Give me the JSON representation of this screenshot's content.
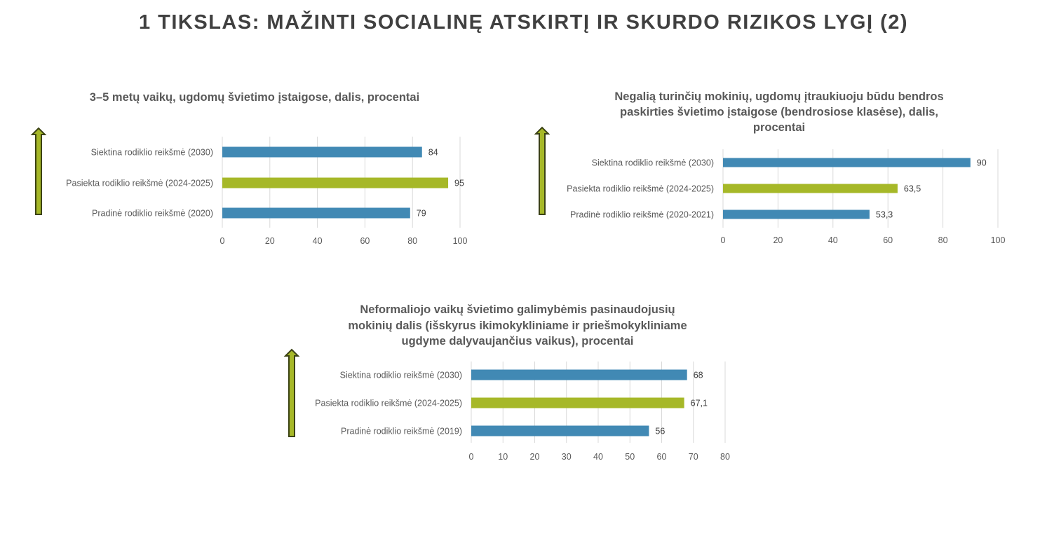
{
  "page_title": "1 TIKSLAS: MAŽINTI SOCIALINĘ ATSKIRTĮ IR SKURDO RIZIKOS LYGĮ (2)",
  "colors": {
    "blue": "#4189b4",
    "green": "#a6b828",
    "arrow_fill": "#a6b828",
    "arrow_stroke": "#3b4214",
    "grid": "#d9d9d9"
  },
  "chart_data": [
    {
      "type": "bar",
      "orientation": "horizontal",
      "title_lines": [
        "3–5 metų vaikų, ugdomų švietimo įstaigose, dalis, procentai"
      ],
      "categories": [
        "Siektina rodiklio reikšmė (2030)",
        "Pasiekta rodiklio reikšmė (2024-2025)",
        "Pradinė rodiklio reikšmė (2020)"
      ],
      "values": [
        84,
        95,
        79
      ],
      "value_labels": [
        "84",
        "95",
        "79"
      ],
      "bar_colors": [
        "blue",
        "green",
        "blue"
      ],
      "xlim": [
        0,
        100
      ],
      "xticks": [
        "0",
        "20",
        "40",
        "60",
        "80",
        "100"
      ],
      "grid": true,
      "direction_arrow": "up"
    },
    {
      "type": "bar",
      "orientation": "horizontal",
      "title_lines": [
        "Negalią turinčių mokinių, ugdomų įtraukiuoju būdu bendros",
        "paskirties švietimo įstaigose (bendrosiose klasėse), dalis,",
        "procentai"
      ],
      "categories": [
        "Siektina rodiklio reikšmė (2030)",
        "Pasiekta rodiklio reikšmė (2024-2025)",
        "Pradinė rodiklio reikšmė (2020-2021)"
      ],
      "values": [
        90,
        63.5,
        53.3
      ],
      "value_labels": [
        "90",
        "63,5",
        "53,3"
      ],
      "bar_colors": [
        "blue",
        "green",
        "blue"
      ],
      "xlim": [
        0,
        100
      ],
      "xticks": [
        "0",
        "20",
        "40",
        "60",
        "80",
        "100"
      ],
      "grid": true,
      "direction_arrow": "up"
    },
    {
      "type": "bar",
      "orientation": "horizontal",
      "title_lines": [
        "Neformaliojo vaikų švietimo galimybėmis pasinaudojusių",
        "mokinių dalis (išskyrus ikimokykliniame ir priešmokykliniame",
        "ugdyme dalyvaujančius vaikus), procentai"
      ],
      "categories": [
        "Siektina rodiklio reikšmė (2030)",
        "Pasiekta rodiklio reikšmė (2024-2025)",
        "Pradinė rodiklio reikšmė (2019)"
      ],
      "values": [
        68,
        67.1,
        56
      ],
      "value_labels": [
        "68",
        "67,1",
        "56"
      ],
      "bar_colors": [
        "blue",
        "green",
        "blue"
      ],
      "xlim": [
        0,
        80
      ],
      "xticks": [
        "0",
        "10",
        "20",
        "30",
        "40",
        "50",
        "60",
        "70",
        "80"
      ],
      "grid": true,
      "direction_arrow": "up"
    }
  ]
}
